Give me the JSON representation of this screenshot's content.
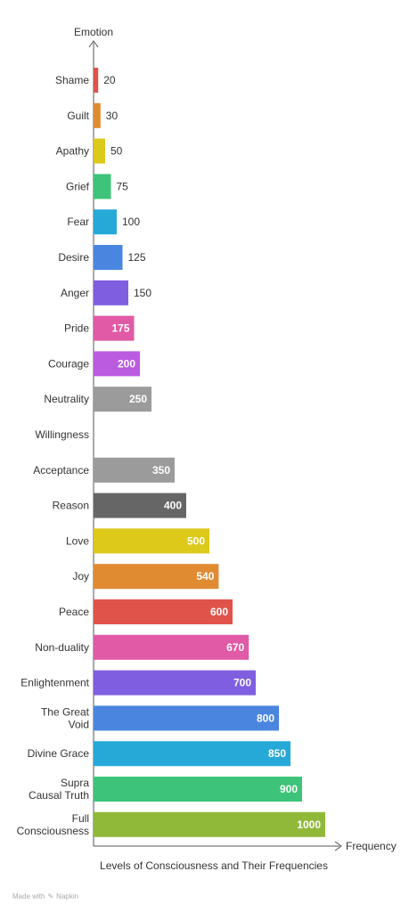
{
  "chart_data": {
    "type": "bar",
    "orientation": "horizontal",
    "title": "Levels of Consciousness and Their Frequencies",
    "ylabel": "Emotion",
    "xlabel": "Frequency",
    "categories": [
      "Shame",
      "Guilt",
      "Apathy",
      "Grief",
      "Fear",
      "Desire",
      "Anger",
      "Pride",
      "Courage",
      "Neutrality",
      "Willingness",
      "Acceptance",
      "Reason",
      "Love",
      "Joy",
      "Peace",
      "Non-duality",
      "Enlightenment",
      "The Great Void",
      "Divine Grace",
      "Supra Causal Truth",
      "Full Consciousness"
    ],
    "category_lines": [
      [
        "Shame"
      ],
      [
        "Guilt"
      ],
      [
        "Apathy"
      ],
      [
        "Grief"
      ],
      [
        "Fear"
      ],
      [
        "Desire"
      ],
      [
        "Anger"
      ],
      [
        "Pride"
      ],
      [
        "Courage"
      ],
      [
        "Neutrality"
      ],
      [
        "Willingness"
      ],
      [
        "Acceptance"
      ],
      [
        "Reason"
      ],
      [
        "Love"
      ],
      [
        "Joy"
      ],
      [
        "Peace"
      ],
      [
        "Non-duality"
      ],
      [
        "Enlightenment"
      ],
      [
        "The Great",
        "Void"
      ],
      [
        "Divine Grace"
      ],
      [
        "Supra",
        "Causal Truth"
      ],
      [
        "Full",
        "Consciousness"
      ]
    ],
    "values": [
      20,
      30,
      50,
      75,
      100,
      125,
      150,
      175,
      200,
      250,
      null,
      350,
      400,
      500,
      540,
      600,
      670,
      700,
      800,
      850,
      900,
      1000
    ],
    "value_labels": [
      "20",
      "30",
      "50",
      "75",
      "100",
      "125",
      "150",
      "175",
      "200",
      "250",
      "",
      "350",
      "400",
      "500",
      "540",
      "600",
      "670",
      "700",
      "800",
      "850",
      "900",
      "1000"
    ],
    "colors": [
      "#e0534a",
      "#e08a32",
      "#dcc919",
      "#3dc47a",
      "#27a9d8",
      "#4a86e0",
      "#7f5fe0",
      "#e05aa5",
      "#bb5be0",
      "#9b9b9b",
      "#9b9b9b",
      "#9b9b9b",
      "#666666",
      "#dcc919",
      "#e08a32",
      "#e0534a",
      "#e05aa5",
      "#7f5fe0",
      "#4a86e0",
      "#27a9d8",
      "#3dc47a",
      "#90b93a"
    ],
    "xlim": [
      0,
      1000
    ],
    "grid": false,
    "legend": "none"
  },
  "footer": {
    "made_with": "Made with",
    "brand": "Napkin"
  }
}
